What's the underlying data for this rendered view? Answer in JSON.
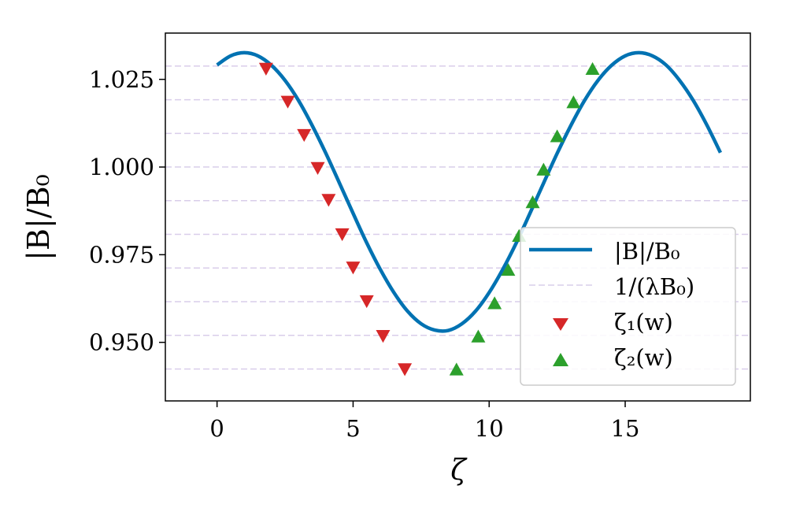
{
  "chart_data": {
    "type": "line",
    "xlabel": "ζ",
    "ylabel": "|B|/B₀",
    "xlim": [
      -1.9,
      19.6
    ],
    "ylim": [
      0.9333,
      1.0382
    ],
    "x_ticks": [
      0,
      5,
      10,
      15
    ],
    "x_tick_labels": [
      "0",
      "5",
      "10",
      "15"
    ],
    "y_ticks": [
      0.95,
      0.975,
      1.0,
      1.025
    ],
    "y_tick_labels": [
      "0.950",
      "0.975",
      "1.000",
      "1.025"
    ],
    "grid": false,
    "legend_position": "lower-right",
    "curve": {
      "name": "|B|/B₀",
      "color": "#0072b2",
      "x": [
        0.0,
        0.5,
        1.0,
        1.5,
        2.0,
        2.5,
        3.0,
        3.5,
        4.0,
        4.5,
        5.0,
        5.5,
        6.0,
        6.5,
        7.0,
        7.5,
        8.0,
        8.5,
        9.0,
        9.5,
        10.0,
        10.5,
        11.0,
        11.5,
        12.0,
        12.5,
        13.0,
        13.5,
        14.0,
        14.5,
        15.0,
        15.5,
        16.0,
        16.5,
        17.0,
        17.5,
        18.0,
        18.5
      ],
      "y": [
        1.0291,
        1.0317,
        1.0326,
        1.0317,
        1.029,
        1.0247,
        1.0189,
        1.0118,
        1.0039,
        0.9954,
        0.9868,
        0.9784,
        0.9708,
        0.9642,
        0.9589,
        0.9553,
        0.9535,
        0.9534,
        0.9553,
        0.9589,
        0.9642,
        0.9708,
        0.9784,
        0.9868,
        0.9954,
        1.0039,
        1.0118,
        1.0189,
        1.0247,
        1.029,
        1.0317,
        1.0326,
        1.0317,
        1.0291,
        1.0247,
        1.019,
        1.012,
        1.0041
      ]
    },
    "levels": {
      "name": "1/(λB₀)",
      "color": "#d9cdea",
      "values": [
        0.9424,
        0.952,
        0.9616,
        0.9712,
        0.9808,
        0.9904,
        1.0,
        1.0096,
        1.0192,
        1.0288
      ]
    },
    "zeta1": {
      "name": "ζ₁(w)",
      "color": "#d62728",
      "marker": "triangle-down",
      "x": [
        1.8,
        2.6,
        3.2,
        3.7,
        4.1,
        4.6,
        5.0,
        5.5,
        6.1,
        6.9
      ],
      "y": [
        1.028,
        1.0186,
        1.0091,
        0.9997,
        0.9906,
        0.9808,
        0.9713,
        0.9617,
        0.9518,
        0.9423
      ]
    },
    "zeta2": {
      "name": "ζ₂(w)",
      "color": "#2ca02c",
      "marker": "triangle-up",
      "x": [
        8.8,
        9.6,
        10.2,
        10.7,
        11.1,
        11.6,
        12.0,
        12.5,
        13.1,
        13.8
      ],
      "y": [
        0.9423,
        0.9517,
        0.9612,
        0.9707,
        0.9804,
        0.99,
        0.9993,
        1.0088,
        1.0185,
        1.028
      ]
    }
  }
}
